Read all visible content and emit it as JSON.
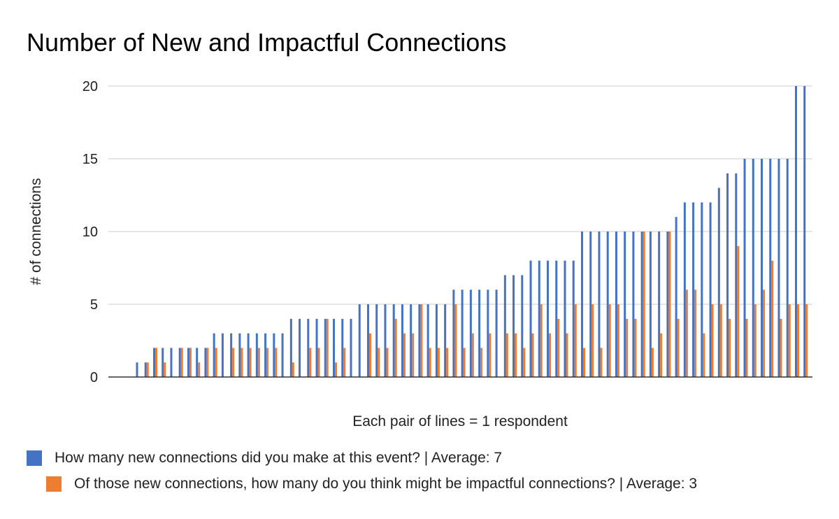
{
  "chart_data": {
    "type": "bar",
    "title": "Number of New and Impactful Connections",
    "xlabel": "Each pair of lines = 1 respondent",
    "ylabel": "# of connections",
    "ylim": [
      0,
      20
    ],
    "yticks": [
      "0",
      "5",
      "10",
      "15",
      "20"
    ],
    "grid": true,
    "legend_position": "bottom",
    "colors": {
      "series1": "#4472c4",
      "series2": "#ed7d31"
    },
    "series": [
      {
        "name": "How many new connections did you make at this event? | Average: 7",
        "values": [
          1,
          1,
          2,
          2,
          2,
          2,
          2,
          2,
          2,
          3,
          3,
          3,
          3,
          3,
          3,
          3,
          3,
          3,
          4,
          4,
          4,
          4,
          4,
          4,
          4,
          4,
          5,
          5,
          5,
          5,
          5,
          5,
          5,
          5,
          5,
          5,
          5,
          6,
          6,
          6,
          6,
          6,
          6,
          7,
          7,
          7,
          8,
          8,
          8,
          8,
          8,
          8,
          10,
          10,
          10,
          10,
          10,
          10,
          10,
          10,
          10,
          10,
          10,
          11,
          12,
          12,
          12,
          12,
          13,
          14,
          14,
          15,
          15,
          15,
          15,
          15,
          15,
          20,
          20
        ]
      },
      {
        "name": "Of those new connections, how many do you think might be impactful connections? | Average: 3",
        "values": [
          0,
          1,
          2,
          1,
          0,
          2,
          2,
          1,
          2,
          2,
          0,
          2,
          2,
          2,
          2,
          2,
          2,
          0,
          1,
          0,
          2,
          2,
          4,
          1,
          2,
          0,
          0,
          3,
          2,
          2,
          4,
          3,
          3,
          5,
          2,
          2,
          2,
          5,
          2,
          3,
          2,
          3,
          0,
          3,
          3,
          2,
          3,
          5,
          3,
          4,
          3,
          5,
          2,
          5,
          2,
          5,
          5,
          4,
          4,
          10,
          2,
          3,
          10,
          4,
          6,
          6,
          3,
          5,
          5,
          4,
          9,
          4,
          5,
          6,
          8,
          4,
          5,
          5,
          5
        ]
      }
    ]
  }
}
